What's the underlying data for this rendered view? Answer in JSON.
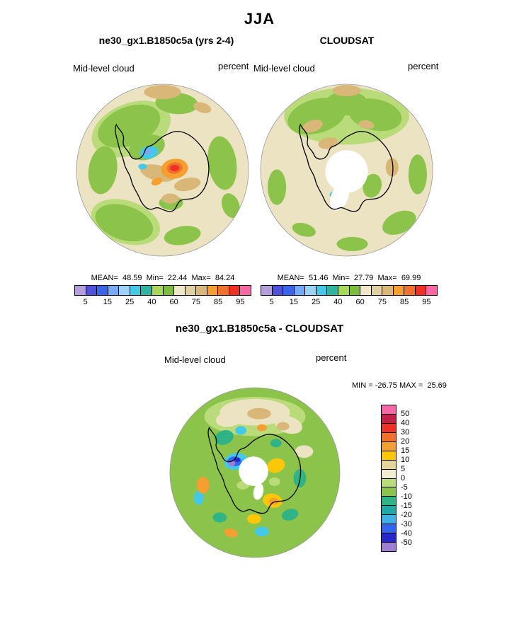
{
  "title": "JJA",
  "top_row": {
    "left_panel": {
      "title": "ne30_gx1.B1850c5a (yrs 2-4)",
      "field_label": "Mid-level cloud",
      "units_label": "percent",
      "stats": "MEAN=  48.59  Min=  22.44  Max=  84.24"
    },
    "right_panel": {
      "title": "CLOUDSAT",
      "field_label": "Mid-level cloud",
      "units_label": "percent",
      "stats": "MEAN=  51.46  Min=  27.79  Max=  69.99"
    },
    "colorbar": {
      "tick_labels": [
        "5",
        "15",
        "25",
        "40",
        "60",
        "75",
        "85",
        "95"
      ],
      "cell_colors": [
        "#b49fdc",
        "#4f52d9",
        "#3a64e8",
        "#74aaf8",
        "#9cd1f8",
        "#44c8e8",
        "#2fb4a0",
        "#a8d85a",
        "#7cbe3c",
        "#f0e6c8",
        "#e0cfa0",
        "#d9b778",
        "#f49f30",
        "#f0702c",
        "#ee3124",
        "#f767a6"
      ]
    }
  },
  "bottom_panel": {
    "title": "ne30_gx1.B1850c5a - CLOUDSAT",
    "field_label": "Mid-level cloud",
    "units_label": "percent",
    "minmax_label": "MIN = -26.75 MAX =  25.69",
    "colorbar": {
      "labels": [
        "50",
        "40",
        "30",
        "20",
        "15",
        "10",
        "5",
        "0",
        "-5",
        "-10",
        "-15",
        "-20",
        "-30",
        "-40",
        "-50"
      ],
      "cell_colors": [
        "#f767a6",
        "#c22047",
        "#ee3124",
        "#f0702c",
        "#f49f30",
        "#fbc707",
        "#e3d498",
        "#f2ecd2",
        "#b9db7a",
        "#8cc34a",
        "#2eb487",
        "#1fa9a9",
        "#3fb0e8",
        "#3366f0",
        "#2727cc",
        "#9f7fd4"
      ]
    }
  },
  "chart_data": [
    {
      "type": "heatmap",
      "subtype": "south_polar_stereographic_filled_contour_map",
      "season": "JJA",
      "title": "ne30_gx1.B1850c5a (yrs 2-4)",
      "variable": "Mid-level cloud",
      "units": "percent",
      "region": "Antarctica (South Pole view)",
      "stats": {
        "mean": 48.59,
        "min": 22.44,
        "max": 84.24
      },
      "contour_levels": [
        5,
        15,
        25,
        40,
        60,
        75,
        85,
        95
      ],
      "legend_position": "below",
      "notable_features": [
        "beige/tan background 60-75%",
        "green regions 40-60% around rim and upper-left interior",
        "cyan/blue low-cloud pocket upper-left interior (~22-25%)",
        "orange-red high maximum spot right-center interior (~84%)"
      ]
    },
    {
      "type": "heatmap",
      "subtype": "south_polar_stereographic_filled_contour_map",
      "season": "JJA",
      "title": "CLOUDSAT",
      "variable": "Mid-level cloud",
      "units": "percent",
      "region": "Antarctica (South Pole view)",
      "stats": {
        "mean": 51.46,
        "min": 27.79,
        "max": 69.99
      },
      "contour_levels": [
        5,
        15,
        25,
        40,
        60,
        75,
        85,
        95
      ],
      "legend_position": "below",
      "notable_features": [
        "white data-gap circle at pole",
        "green band across top of domain",
        "beige interior with tan patches",
        "small cyan pocket below-left of pole gap"
      ]
    },
    {
      "type": "heatmap",
      "subtype": "south_polar_stereographic_filled_contour_difference_map",
      "season": "JJA",
      "title": "ne30_gx1.B1850c5a - CLOUDSAT",
      "variable": "Mid-level cloud difference",
      "units": "percent",
      "region": "Antarctica (South Pole view)",
      "stats": {
        "min": -26.75,
        "max": 25.69
      },
      "contour_levels": [
        -50,
        -40,
        -30,
        -20,
        -15,
        -10,
        -5,
        0,
        5,
        10,
        15,
        20,
        30,
        40,
        50
      ],
      "legend_position": "right",
      "notable_features": [
        "green background -10 to 0",
        "blue/purple strong negative spot left of pole gap",
        "yellow/orange positive blobs right and below pole gap",
        "beige/tan positive band along top",
        "teal/cyan negative pockets around rim",
        "white data-gap circle at pole"
      ]
    }
  ]
}
